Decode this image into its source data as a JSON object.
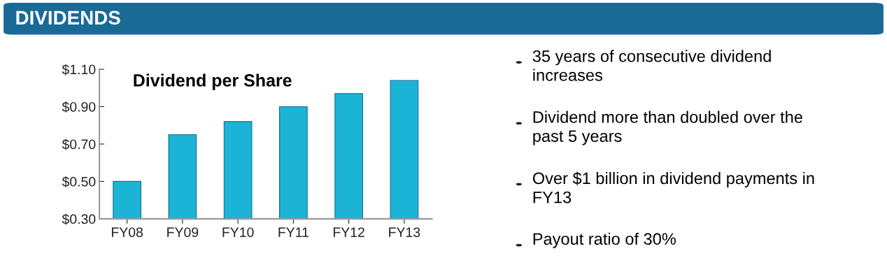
{
  "chart_data": {
    "type": "bar",
    "title": "DIVIDENDS",
    "subtitle": "Dividend per Share",
    "categories": [
      "FY08",
      "FY09",
      "FY10",
      "FY11",
      "FY12",
      "FY13"
    ],
    "values": [
      0.5,
      0.75,
      0.82,
      0.9,
      0.97,
      1.04
    ],
    "color": "#1cb4d6",
    "ylim": [
      0.3,
      1.1
    ],
    "yticks": [
      {
        "value": 0.3,
        "label": "$0.30"
      },
      {
        "value": 0.5,
        "label": "$0.50"
      },
      {
        "value": 0.7,
        "label": "$0.70"
      },
      {
        "value": 0.9,
        "label": "$0.90"
      },
      {
        "value": 1.1,
        "label": "$1.10"
      }
    ],
    "grid": false,
    "legend": false,
    "annotations": [
      "35 years of consecutive dividend increases",
      "Dividend more than doubled over the past 5 years",
      "Over $1 billion in dividend payments in FY13",
      "Payout ratio of 30%"
    ]
  }
}
